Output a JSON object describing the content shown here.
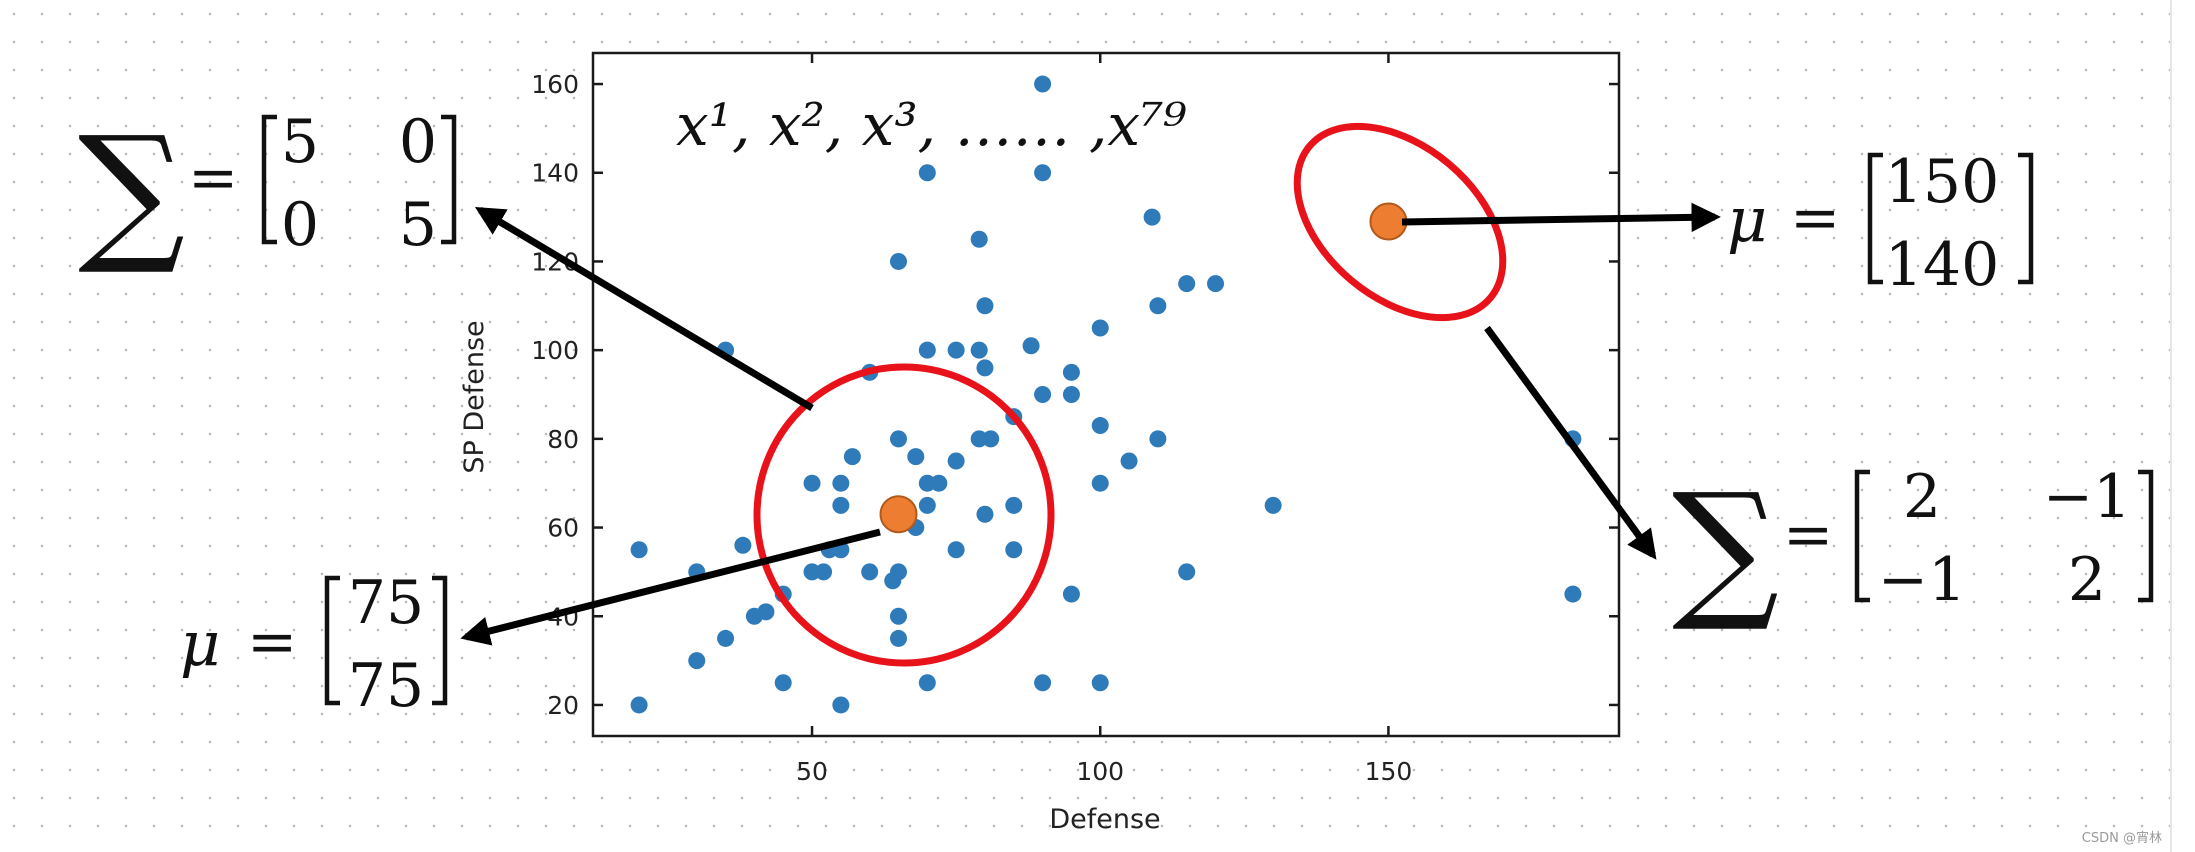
{
  "chart_data": {
    "type": "scatter",
    "title": "",
    "xlabel": "Defense",
    "ylabel": "SP Defense",
    "xlim": [
      12,
      190
    ],
    "ylim": [
      13,
      167
    ],
    "xticks": [
      50,
      100,
      150
    ],
    "yticks": [
      20,
      40,
      60,
      80,
      100,
      120,
      140,
      160
    ],
    "grid": false,
    "legend": "none",
    "point_color": "#2f7ab8",
    "points": [
      [
        90,
        160
      ],
      [
        70,
        140
      ],
      [
        90,
        140
      ],
      [
        109,
        130
      ],
      [
        79,
        125
      ],
      [
        65,
        120
      ],
      [
        115,
        115
      ],
      [
        120,
        115
      ],
      [
        80,
        110
      ],
      [
        110,
        110
      ],
      [
        100,
        105
      ],
      [
        88,
        101
      ],
      [
        35,
        100
      ],
      [
        70,
        100
      ],
      [
        75,
        100
      ],
      [
        79,
        100
      ],
      [
        80,
        96
      ],
      [
        60,
        95
      ],
      [
        95,
        95
      ],
      [
        90,
        90
      ],
      [
        95,
        90
      ],
      [
        85,
        85
      ],
      [
        100,
        83
      ],
      [
        65,
        80
      ],
      [
        79,
        80
      ],
      [
        81,
        80
      ],
      [
        110,
        80
      ],
      [
        182,
        80
      ],
      [
        57,
        76
      ],
      [
        68,
        76
      ],
      [
        105,
        75
      ],
      [
        75,
        75
      ],
      [
        72,
        70
      ],
      [
        50,
        70
      ],
      [
        55,
        70
      ],
      [
        70,
        70
      ],
      [
        100,
        70
      ],
      [
        55,
        65
      ],
      [
        70,
        65
      ],
      [
        85,
        65
      ],
      [
        130,
        65
      ],
      [
        80,
        63
      ],
      [
        68,
        60
      ],
      [
        38,
        56
      ],
      [
        53,
        55
      ],
      [
        20,
        55
      ],
      [
        55,
        55
      ],
      [
        75,
        55
      ],
      [
        85,
        55
      ],
      [
        30,
        50
      ],
      [
        50,
        50
      ],
      [
        52,
        50
      ],
      [
        60,
        50
      ],
      [
        65,
        50
      ],
      [
        64,
        48
      ],
      [
        115,
        50
      ],
      [
        45,
        45
      ],
      [
        95,
        45
      ],
      [
        182,
        45
      ],
      [
        42,
        41
      ],
      [
        40,
        40
      ],
      [
        65,
        40
      ],
      [
        35,
        35
      ],
      [
        65,
        35
      ],
      [
        30,
        30
      ],
      [
        45,
        25
      ],
      [
        70,
        25
      ],
      [
        90,
        25
      ],
      [
        100,
        25
      ],
      [
        20,
        20
      ],
      [
        55,
        20
      ]
    ],
    "centers": [
      {
        "x": 65,
        "y": 63,
        "color": "#ed7d31"
      },
      {
        "x": 150,
        "y": 129,
        "color": "#ed7d31"
      }
    ],
    "annotations": {
      "sequence": "𝑥¹, 𝑥², 𝑥³, …… ,𝑥⁷⁹",
      "sigma_symbol": "∑",
      "mu_symbol": "𝜇",
      "equals": "=",
      "sigma_left": {
        "r1c1": "5",
        "r1c2": "0",
        "r2c1": "0",
        "r2c2": "5"
      },
      "mu_right": {
        "r1": "150",
        "r2": "140"
      },
      "mu_left": {
        "r1": "75",
        "r2": "75"
      },
      "sigma_right": {
        "r1c1": "2",
        "r1c2": "−1",
        "r2c1": "−1",
        "r2c2": "2"
      },
      "circle_color": "#e8131a",
      "arrow_color": "#000000"
    }
  },
  "watermark": "CSDN @宵林"
}
